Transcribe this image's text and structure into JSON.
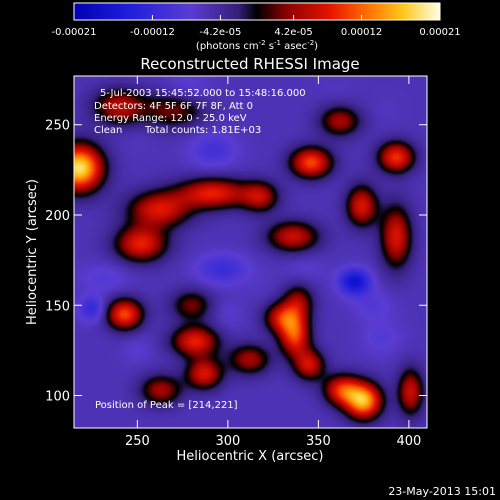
{
  "chart_data": {
    "type": "heatmap",
    "title": "Reconstructed RHESSI Image",
    "xlabel": "Heliocentric X (arcsec)",
    "ylabel": "Heliocentric Y (arcsec)",
    "xlim": [
      215,
      410
    ],
    "ylim": [
      82,
      277
    ],
    "x_ticks": [
      250,
      300,
      350,
      400
    ],
    "y_ticks": [
      100,
      150,
      200,
      250
    ],
    "colorbar": {
      "range": [
        -0.00021,
        0.00021
      ],
      "tick_values": [
        -0.00021,
        -0.00012,
        -4.2e-05,
        4.2e-05,
        0.00012,
        0.00021
      ],
      "tick_labels": [
        "-0.00021",
        "-0.00012",
        "-4.2e-05",
        "4.2e-05",
        "0.00012",
        "0.00021"
      ],
      "unit_label": "(photons cm",
      "unit_exp1": "-2",
      "unit_mid": " s",
      "unit_exp2": "-1",
      "unit_tail": " asec",
      "unit_exp3": "-2",
      "unit_close": ")"
    },
    "annotations": {
      "time_range": "5-Jul-2003 15:45:52.000 to 15:48:16.000",
      "detectors": "Detectors: 4F 5F 6F 7F 8F, Att 0",
      "energy_range": "Energy Range: 12.0 - 25.0 keV",
      "clean": "Clean",
      "total_counts": "Total counts: 1.81E+03",
      "peak_position": "Position of Peak = [214,221]"
    },
    "sources": [
      {
        "x": 218,
        "y": 226,
        "value": 0.00021,
        "sx": 9,
        "sy": 9
      },
      {
        "x": 240,
        "y": 260,
        "value": 8e-05,
        "sx": 10,
        "sy": 7
      },
      {
        "x": 270,
        "y": 258,
        "value": 5e-05,
        "sx": 12,
        "sy": 7
      },
      {
        "x": 262,
        "y": 203,
        "value": 0.0001,
        "sx": 12,
        "sy": 7
      },
      {
        "x": 292,
        "y": 212,
        "value": 0.00011,
        "sx": 14,
        "sy": 6
      },
      {
        "x": 252,
        "y": 184,
        "value": 0.00011,
        "sx": 10,
        "sy": 7
      },
      {
        "x": 318,
        "y": 210,
        "value": 7e-05,
        "sx": 7,
        "sy": 6
      },
      {
        "x": 346,
        "y": 229,
        "value": 0.00013,
        "sx": 8,
        "sy": 6
      },
      {
        "x": 393,
        "y": 232,
        "value": 0.00012,
        "sx": 7,
        "sy": 6
      },
      {
        "x": 362,
        "y": 252,
        "value": 7e-05,
        "sx": 8,
        "sy": 6
      },
      {
        "x": 374,
        "y": 205,
        "value": 0.0001,
        "sx": 6,
        "sy": 8
      },
      {
        "x": 393,
        "y": 188,
        "value": 0.0001,
        "sx": 6,
        "sy": 12
      },
      {
        "x": 336,
        "y": 188,
        "value": 9e-05,
        "sx": 10,
        "sy": 6
      },
      {
        "x": 339,
        "y": 152,
        "value": 6e-05,
        "sx": 6,
        "sy": 7
      },
      {
        "x": 330,
        "y": 143,
        "value": 9e-05,
        "sx": 7,
        "sy": 6
      },
      {
        "x": 337,
        "y": 133,
        "value": 0.00012,
        "sx": 6,
        "sy": 8
      },
      {
        "x": 345,
        "y": 117,
        "value": 9e-05,
        "sx": 6,
        "sy": 6
      },
      {
        "x": 312,
        "y": 120,
        "value": 7e-05,
        "sx": 8,
        "sy": 6
      },
      {
        "x": 243,
        "y": 145,
        "value": 0.00013,
        "sx": 7,
        "sy": 6
      },
      {
        "x": 280,
        "y": 150,
        "value": 5e-05,
        "sx": 8,
        "sy": 6
      },
      {
        "x": 282,
        "y": 130,
        "value": 0.00011,
        "sx": 9,
        "sy": 6
      },
      {
        "x": 287,
        "y": 112,
        "value": 0.0001,
        "sx": 7,
        "sy": 6
      },
      {
        "x": 263,
        "y": 103,
        "value": 7e-05,
        "sx": 8,
        "sy": 6
      },
      {
        "x": 375,
        "y": 97,
        "value": 0.00018,
        "sx": 7,
        "sy": 7
      },
      {
        "x": 363,
        "y": 103,
        "value": 0.00011,
        "sx": 7,
        "sy": 6
      },
      {
        "x": 401,
        "y": 102,
        "value": 9e-05,
        "sx": 5,
        "sy": 9
      },
      {
        "x": 278,
        "y": 270,
        "value": -6e-05,
        "sx": 9,
        "sy": 6
      },
      {
        "x": 292,
        "y": 236,
        "value": -8e-05,
        "sx": 9,
        "sy": 7
      },
      {
        "x": 232,
        "y": 165,
        "value": -6e-05,
        "sx": 10,
        "sy": 6
      },
      {
        "x": 225,
        "y": 148,
        "value": -0.0001,
        "sx": 5,
        "sy": 5
      },
      {
        "x": 297,
        "y": 170,
        "value": -9e-05,
        "sx": 10,
        "sy": 6
      },
      {
        "x": 370,
        "y": 163,
        "value": -0.00015,
        "sx": 6,
        "sy": 5
      },
      {
        "x": 380,
        "y": 150,
        "value": -6e-05,
        "sx": 8,
        "sy": 6
      },
      {
        "x": 385,
        "y": 132,
        "value": -6e-05,
        "sx": 8,
        "sy": 7
      },
      {
        "x": 343,
        "y": 170,
        "value": -5e-05,
        "sx": 8,
        "sy": 6
      },
      {
        "x": 300,
        "y": 145,
        "value": -5e-05,
        "sx": 6,
        "sy": 6
      },
      {
        "x": 360,
        "y": 270,
        "value": -4e-05,
        "sx": 8,
        "sy": 5
      },
      {
        "x": 388,
        "y": 258,
        "value": -4e-05,
        "sx": 6,
        "sy": 6
      },
      {
        "x": 250,
        "y": 125,
        "value": -5e-05,
        "sx": 6,
        "sy": 6
      },
      {
        "x": 318,
        "y": 160,
        "value": -4e-05,
        "sx": 6,
        "sy": 6
      },
      {
        "x": 250,
        "y": 242,
        "value": -4e-05,
        "sx": 7,
        "sy": 6
      }
    ]
  },
  "footer": {
    "timestamp": "23-May-2013 15:01"
  },
  "colors": {
    "background": "#000000",
    "foreground": "#ffffff"
  }
}
